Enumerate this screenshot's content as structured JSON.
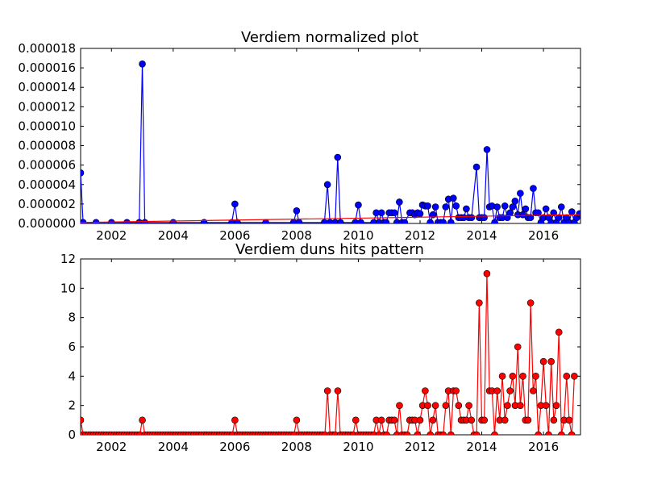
{
  "colors": {
    "top_series": "#0000ff",
    "top_trend": "#ff0000",
    "bottom_series": "#ff0000",
    "marker_edge": "#000000",
    "background": "#ffffff"
  },
  "chart_data": [
    {
      "type": "line",
      "title": "Verdiem normalized plot",
      "xlabel": "",
      "ylabel": "",
      "xlim": [
        2001.0,
        2017.2
      ],
      "ylim": [
        0,
        1.8e-05
      ],
      "grid": false,
      "x_ticks": [
        2002,
        2004,
        2006,
        2008,
        2010,
        2012,
        2014,
        2016
      ],
      "x_tick_labels": [
        "2002",
        "2004",
        "2006",
        "2008",
        "2010",
        "2012",
        "2014",
        "2016"
      ],
      "y_ticks": [
        0,
        2e-06,
        4e-06,
        6e-06,
        8e-06,
        1e-05,
        1.2e-05,
        1.4e-05,
        1.6e-05,
        1.8e-05
      ],
      "y_tick_labels": [
        "0.000000",
        "0.000002",
        "0.000004",
        "0.000006",
        "0.000008",
        "0.000010",
        "0.000012",
        "0.000014",
        "0.000016",
        "0.000018"
      ],
      "series": [
        {
          "style": "line+markers",
          "points": [
            [
              2001.0,
              5.2e-06
            ],
            [
              2001.08,
              1e-07
            ],
            [
              2001.5,
              1e-07
            ],
            [
              2002.0,
              1e-07
            ],
            [
              2002.5,
              1e-07
            ],
            [
              2002.9,
              1e-07
            ],
            [
              2003.0,
              1.64e-05
            ],
            [
              2003.08,
              1e-07
            ],
            [
              2004.0,
              1e-07
            ],
            [
              2005.0,
              1e-07
            ],
            [
              2005.9,
              1e-07
            ],
            [
              2006.0,
              2e-06
            ],
            [
              2006.08,
              1e-07
            ],
            [
              2007.0,
              1e-07
            ],
            [
              2007.9,
              1e-07
            ],
            [
              2008.0,
              1.3e-06
            ],
            [
              2008.08,
              1e-07
            ],
            [
              2008.9,
              1e-07
            ],
            [
              2009.0,
              4e-06
            ],
            [
              2009.08,
              1e-07
            ],
            [
              2009.25,
              1e-07
            ],
            [
              2009.33,
              6.8e-06
            ],
            [
              2009.42,
              1e-07
            ],
            [
              2009.9,
              1e-07
            ],
            [
              2010.0,
              1.9e-06
            ],
            [
              2010.08,
              1e-07
            ],
            [
              2010.5,
              1e-07
            ],
            [
              2010.58,
              1.1e-06
            ],
            [
              2010.67,
              1e-07
            ],
            [
              2010.75,
              1.1e-06
            ],
            [
              2010.83,
              1e-07
            ],
            [
              2010.9,
              1e-07
            ],
            [
              2011.0,
              1.1e-06
            ],
            [
              2011.08,
              1.1e-06
            ],
            [
              2011.17,
              1.1e-06
            ],
            [
              2011.25,
              1e-07
            ],
            [
              2011.33,
              2.2e-06
            ],
            [
              2011.42,
              1e-07
            ],
            [
              2011.5,
              1e-07
            ],
            [
              2011.67,
              1.1e-06
            ],
            [
              2011.75,
              1.1e-06
            ],
            [
              2011.83,
              9e-07
            ],
            [
              2011.92,
              1.1e-06
            ],
            [
              2012.0,
              1e-06
            ],
            [
              2012.08,
              1.9e-06
            ],
            [
              2012.17,
              1.8e-06
            ],
            [
              2012.25,
              1.8e-06
            ],
            [
              2012.33,
              1e-07
            ],
            [
              2012.42,
              9e-07
            ],
            [
              2012.5,
              1.7e-06
            ],
            [
              2012.58,
              1e-07
            ],
            [
              2012.67,
              1e-07
            ],
            [
              2012.75,
              1e-07
            ],
            [
              2012.83,
              1.7e-06
            ],
            [
              2012.92,
              2.5e-06
            ],
            [
              2013.0,
              1e-07
            ],
            [
              2013.08,
              2.6e-06
            ],
            [
              2013.17,
              1.8e-06
            ],
            [
              2013.25,
              6e-07
            ],
            [
              2013.33,
              6e-07
            ],
            [
              2013.42,
              6e-07
            ],
            [
              2013.5,
              1.5e-06
            ],
            [
              2013.58,
              6e-07
            ],
            [
              2013.67,
              6e-07
            ],
            [
              2013.83,
              5.8e-06
            ],
            [
              2013.92,
              6e-07
            ],
            [
              2014.0,
              6e-07
            ],
            [
              2014.08,
              6e-07
            ],
            [
              2014.17,
              7.6e-06
            ],
            [
              2014.25,
              1.7e-06
            ],
            [
              2014.33,
              1.8e-06
            ],
            [
              2014.42,
              1e-07
            ],
            [
              2014.5,
              1.7e-06
            ],
            [
              2014.58,
              6e-07
            ],
            [
              2014.67,
              6e-07
            ],
            [
              2014.75,
              1.8e-06
            ],
            [
              2014.83,
              6e-07
            ],
            [
              2014.92,
              1.1e-06
            ],
            [
              2015.0,
              1.7e-06
            ],
            [
              2015.08,
              2.3e-06
            ],
            [
              2015.17,
              9e-07
            ],
            [
              2015.25,
              3.1e-06
            ],
            [
              2015.33,
              9e-07
            ],
            [
              2015.42,
              1.5e-06
            ],
            [
              2015.5,
              6e-07
            ],
            [
              2015.58,
              6e-07
            ],
            [
              2015.67,
              3.6e-06
            ],
            [
              2015.75,
              1.1e-06
            ],
            [
              2015.83,
              1.1e-06
            ],
            [
              2015.92,
              1e-07
            ],
            [
              2016.0,
              6e-07
            ],
            [
              2016.08,
              1.5e-06
            ],
            [
              2016.17,
              6e-07
            ],
            [
              2016.25,
              1e-07
            ],
            [
              2016.33,
              1.1e-06
            ],
            [
              2016.42,
              1e-07
            ],
            [
              2016.5,
              6e-07
            ],
            [
              2016.58,
              1.7e-06
            ],
            [
              2016.67,
              1e-07
            ],
            [
              2016.75,
              6e-07
            ],
            [
              2016.83,
              1e-07
            ],
            [
              2016.92,
              1.2e-06
            ],
            [
              2017.0,
              1e-07
            ],
            [
              2017.08,
              6e-07
            ],
            [
              2017.17,
              1e-06
            ]
          ]
        },
        {
          "style": "line",
          "role": "trend",
          "points": [
            [
              2001.0,
              1e-07
            ],
            [
              2017.17,
              9e-07
            ]
          ]
        }
      ]
    },
    {
      "type": "line",
      "title": "Verdiem duns hits pattern",
      "xlabel": "",
      "ylabel": "",
      "xlim": [
        2001.0,
        2017.2
      ],
      "ylim": [
        0,
        12
      ],
      "grid": false,
      "x_ticks": [
        2002,
        2004,
        2006,
        2008,
        2010,
        2012,
        2014,
        2016
      ],
      "x_tick_labels": [
        "2002",
        "2004",
        "2006",
        "2008",
        "2010",
        "2012",
        "2014",
        "2016"
      ],
      "y_ticks": [
        0,
        2,
        4,
        6,
        8,
        10,
        12
      ],
      "y_tick_labels": [
        "0",
        "2",
        "4",
        "6",
        "8",
        "10",
        "12"
      ],
      "series": [
        {
          "style": "line+markers",
          "months": {
            "start_year": 2001,
            "start_month": 1
          },
          "values": [
            1,
            0,
            0,
            0,
            0,
            0,
            0,
            0,
            0,
            0,
            0,
            0,
            0,
            0,
            0,
            0,
            0,
            0,
            0,
            0,
            0,
            0,
            0,
            0,
            1,
            0,
            0,
            0,
            0,
            0,
            0,
            0,
            0,
            0,
            0,
            0,
            0,
            0,
            0,
            0,
            0,
            0,
            0,
            0,
            0,
            0,
            0,
            0,
            0,
            0,
            0,
            0,
            0,
            0,
            0,
            0,
            0,
            0,
            0,
            0,
            1,
            0,
            0,
            0,
            0,
            0,
            0,
            0,
            0,
            0,
            0,
            0,
            0,
            0,
            0,
            0,
            0,
            0,
            0,
            0,
            0,
            0,
            0,
            0,
            1,
            0,
            0,
            0,
            0,
            0,
            0,
            0,
            0,
            0,
            0,
            0,
            3,
            0,
            0,
            0,
            3,
            0,
            0,
            0,
            0,
            0,
            0,
            1,
            0,
            0,
            0,
            0,
            0,
            0,
            0,
            1,
            0,
            1,
            0,
            0,
            1,
            1,
            1,
            0,
            2,
            0,
            0,
            0,
            1,
            1,
            1,
            0,
            1,
            2,
            3,
            2,
            0,
            1,
            2,
            0,
            0,
            0,
            2,
            3,
            0,
            3,
            3,
            2,
            1,
            1,
            1,
            2,
            1,
            0,
            0,
            9,
            1,
            1,
            11,
            3,
            3,
            0,
            3,
            1,
            4,
            1,
            2,
            3,
            4,
            2,
            6,
            2,
            4,
            1,
            1,
            9,
            3,
            4,
            0,
            2,
            5,
            2,
            0,
            5,
            1,
            2,
            7,
            0,
            1,
            4,
            1,
            0,
            4
          ]
        }
      ]
    }
  ]
}
